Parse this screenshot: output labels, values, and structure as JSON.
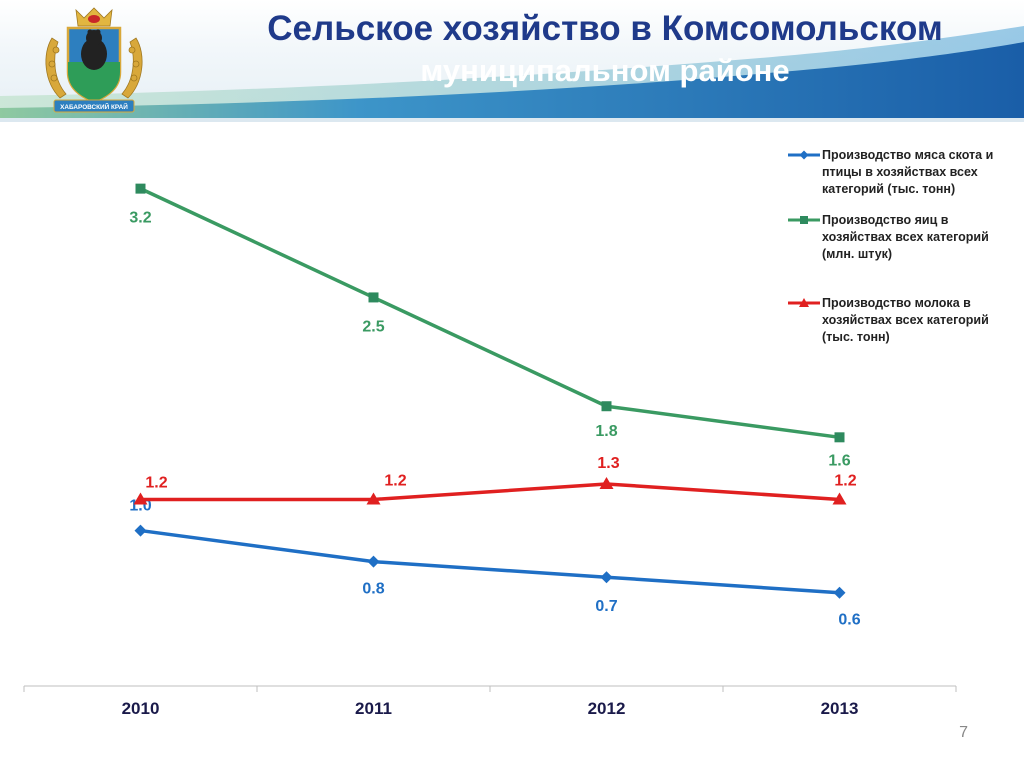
{
  "slide": {
    "title_line1": "Сельское хозяйство в Комсомольском",
    "title_line2": "муниципальном районе",
    "page_number": "7",
    "emblem_text": "ХАБАРОВСКИЙ КРАЙ"
  },
  "colors": {
    "title": "#1f3a8a",
    "header_band": "#1d6fb5",
    "header_green": "#6fbf73"
  },
  "chart_data": {
    "type": "line",
    "categories": [
      "2010",
      "2011",
      "2012",
      "2013"
    ],
    "ylim": [
      0,
      3.5
    ],
    "grid": false,
    "legend_position": "top-right",
    "series": [
      {
        "name": "Производство мяса скота и птицы в хозяйствах всех категорий (тыс. тонн)",
        "values": [
          1.0,
          0.8,
          0.7,
          0.6
        ],
        "labels": [
          "1.0",
          "0.8",
          "0.7",
          "0.6"
        ],
        "color": "#1f6fc5",
        "marker": "diamond"
      },
      {
        "name": "Производство яиц в хозяйствах всех категорий (млн. штук)",
        "values": [
          3.2,
          2.5,
          1.8,
          1.6
        ],
        "labels": [
          "3.2",
          "2.5",
          "1.8",
          "1.6"
        ],
        "color": "#3a9a62",
        "marker": "square"
      },
      {
        "name": "Производство молока в хозяйствах всех категорий (тыс. тонн)",
        "values": [
          1.2,
          1.2,
          1.3,
          1.2
        ],
        "labels": [
          "1.2",
          "1.2",
          "1.3",
          "1.2"
        ],
        "color": "#e02020",
        "marker": "triangle"
      }
    ]
  }
}
